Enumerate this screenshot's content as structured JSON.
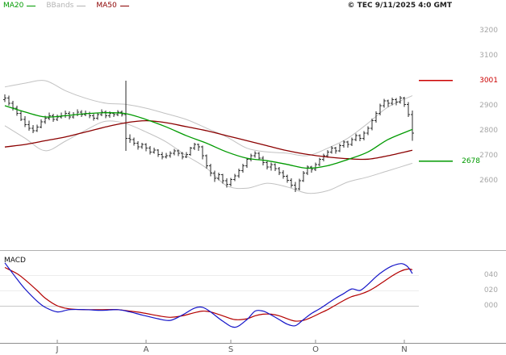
{
  "legend": {
    "items": [
      {
        "label": "MA20",
        "color": "#009a00"
      },
      {
        "label": "BBands",
        "color": "#b4b4b4"
      },
      {
        "label": "MA50",
        "color": "#8b0000"
      }
    ]
  },
  "meta": {
    "copyright": "© TEC 9/11/2025 4:0 GMT"
  },
  "chart_data": {
    "type": "candlestick",
    "panels": [
      "price",
      "macd"
    ],
    "price_panel": {
      "axis_ticks": [
        "3200",
        "3100",
        "2900",
        "2800",
        "2700",
        "2600"
      ],
      "axis_tick_values": [
        3200,
        3100,
        2900,
        2800,
        2700,
        2600
      ],
      "ylim": [
        2540,
        3260
      ],
      "levels": [
        {
          "label": "3001",
          "value": 3001,
          "color": "#cc0000"
        },
        {
          "label": "2678",
          "value": 2678,
          "color": "#009a00"
        }
      ],
      "candles_ohlc": [
        [
          2925,
          2945,
          2915,
          2930
        ],
        [
          2930,
          2940,
          2900,
          2910
        ],
        [
          2910,
          2920,
          2880,
          2890
        ],
        [
          2890,
          2900,
          2860,
          2870
        ],
        [
          2870,
          2880,
          2838,
          2845
        ],
        [
          2845,
          2858,
          2815,
          2825
        ],
        [
          2825,
          2840,
          2800,
          2810
        ],
        [
          2810,
          2822,
          2790,
          2800
        ],
        [
          2800,
          2825,
          2795,
          2815
        ],
        [
          2815,
          2845,
          2810,
          2835
        ],
        [
          2835,
          2860,
          2828,
          2850
        ],
        [
          2850,
          2872,
          2842,
          2860
        ],
        [
          2860,
          2868,
          2835,
          2845
        ],
        [
          2845,
          2865,
          2838,
          2855
        ],
        [
          2855,
          2872,
          2848,
          2860
        ],
        [
          2860,
          2880,
          2852,
          2870
        ],
        [
          2870,
          2878,
          2845,
          2855
        ],
        [
          2855,
          2875,
          2848,
          2865
        ],
        [
          2865,
          2885,
          2858,
          2875
        ],
        [
          2875,
          2882,
          2855,
          2865
        ],
        [
          2865,
          2880,
          2858,
          2870
        ],
        [
          2870,
          2876,
          2850,
          2860
        ],
        [
          2860,
          2868,
          2840,
          2850
        ],
        [
          2850,
          2872,
          2844,
          2865
        ],
        [
          2865,
          2885,
          2858,
          2875
        ],
        [
          2875,
          2880,
          2850,
          2860
        ],
        [
          2860,
          2878,
          2852,
          2870
        ],
        [
          2870,
          2874,
          2855,
          2865
        ],
        [
          2865,
          2882,
          2858,
          2875
        ],
        [
          2875,
          2880,
          2856,
          2865
        ],
        [
          2865,
          3000,
          2720,
          2770
        ],
        [
          2770,
          2785,
          2752,
          2765
        ],
        [
          2765,
          2772,
          2740,
          2750
        ],
        [
          2750,
          2758,
          2725,
          2735
        ],
        [
          2735,
          2752,
          2728,
          2745
        ],
        [
          2745,
          2750,
          2718,
          2730
        ],
        [
          2730,
          2738,
          2705,
          2715
        ],
        [
          2715,
          2732,
          2708,
          2722
        ],
        [
          2722,
          2726,
          2695,
          2705
        ],
        [
          2705,
          2715,
          2685,
          2695
        ],
        [
          2695,
          2712,
          2688,
          2700
        ],
        [
          2700,
          2718,
          2692,
          2710
        ],
        [
          2710,
          2728,
          2702,
          2720
        ],
        [
          2720,
          2725,
          2698,
          2710
        ],
        [
          2710,
          2715,
          2685,
          2695
        ],
        [
          2695,
          2715,
          2690,
          2705
        ],
        [
          2705,
          2735,
          2700,
          2730
        ],
        [
          2730,
          2752,
          2722,
          2745
        ],
        [
          2745,
          2748,
          2720,
          2735
        ],
        [
          2735,
          2740,
          2685,
          2700
        ],
        [
          2700,
          2705,
          2648,
          2660
        ],
        [
          2660,
          2668,
          2618,
          2630
        ],
        [
          2630,
          2640,
          2595,
          2610
        ],
        [
          2610,
          2632,
          2602,
          2625
        ],
        [
          2625,
          2628,
          2588,
          2600
        ],
        [
          2600,
          2610,
          2572,
          2585
        ],
        [
          2585,
          2612,
          2578,
          2605
        ],
        [
          2605,
          2628,
          2598,
          2620
        ],
        [
          2620,
          2648,
          2612,
          2640
        ],
        [
          2640,
          2668,
          2632,
          2660
        ],
        [
          2660,
          2692,
          2652,
          2685
        ],
        [
          2685,
          2708,
          2678,
          2700
        ],
        [
          2700,
          2718,
          2692,
          2710
        ],
        [
          2710,
          2715,
          2682,
          2690
        ],
        [
          2690,
          2698,
          2662,
          2672
        ],
        [
          2672,
          2680,
          2645,
          2655
        ],
        [
          2655,
          2672,
          2640,
          2665
        ],
        [
          2665,
          2670,
          2638,
          2648
        ],
        [
          2648,
          2655,
          2622,
          2632
        ],
        [
          2632,
          2642,
          2608,
          2618
        ],
        [
          2618,
          2625,
          2592,
          2602
        ],
        [
          2602,
          2610,
          2572,
          2582
        ],
        [
          2582,
          2595,
          2555,
          2568
        ],
        [
          2568,
          2608,
          2562,
          2600
        ],
        [
          2600,
          2638,
          2595,
          2630
        ],
        [
          2630,
          2662,
          2622,
          2655
        ],
        [
          2655,
          2660,
          2632,
          2645
        ],
        [
          2645,
          2672,
          2638,
          2665
        ],
        [
          2665,
          2692,
          2658,
          2685
        ],
        [
          2685,
          2708,
          2678,
          2700
        ],
        [
          2700,
          2722,
          2692,
          2715
        ],
        [
          2715,
          2738,
          2708,
          2730
        ],
        [
          2730,
          2735,
          2708,
          2720
        ],
        [
          2720,
          2748,
          2714,
          2740
        ],
        [
          2740,
          2762,
          2732,
          2755
        ],
        [
          2755,
          2760,
          2732,
          2745
        ],
        [
          2745,
          2772,
          2738,
          2765
        ],
        [
          2765,
          2788,
          2758,
          2780
        ],
        [
          2780,
          2785,
          2758,
          2770
        ],
        [
          2770,
          2798,
          2762,
          2790
        ],
        [
          2790,
          2818,
          2782,
          2810
        ],
        [
          2810,
          2848,
          2802,
          2840
        ],
        [
          2840,
          2878,
          2832,
          2870
        ],
        [
          2870,
          2908,
          2862,
          2900
        ],
        [
          2900,
          2928,
          2892,
          2920
        ],
        [
          2920,
          2925,
          2895,
          2910
        ],
        [
          2910,
          2932,
          2902,
          2925
        ],
        [
          2925,
          2930,
          2902,
          2915
        ],
        [
          2915,
          2938,
          2908,
          2930
        ],
        [
          2930,
          2935,
          2895,
          2905
        ],
        [
          2905,
          2915,
          2855,
          2865
        ],
        [
          2865,
          2880,
          2760,
          2790
        ]
      ],
      "ma20": [
        [
          0,
          2900
        ],
        [
          5,
          2875
        ],
        [
          10,
          2855
        ],
        [
          15,
          2860
        ],
        [
          20,
          2868
        ],
        [
          25,
          2872
        ],
        [
          30,
          2868
        ],
        [
          35,
          2845
        ],
        [
          40,
          2815
        ],
        [
          45,
          2780
        ],
        [
          50,
          2750
        ],
        [
          55,
          2715
        ],
        [
          60,
          2690
        ],
        [
          65,
          2680
        ],
        [
          70,
          2665
        ],
        [
          75,
          2650
        ],
        [
          80,
          2660
        ],
        [
          85,
          2685
        ],
        [
          90,
          2715
        ],
        [
          95,
          2765
        ],
        [
          101,
          2805
        ]
      ],
      "ma50": [
        [
          0,
          2735
        ],
        [
          5,
          2745
        ],
        [
          10,
          2760
        ],
        [
          15,
          2775
        ],
        [
          20,
          2795
        ],
        [
          25,
          2815
        ],
        [
          30,
          2832
        ],
        [
          35,
          2840
        ],
        [
          40,
          2832
        ],
        [
          45,
          2816
        ],
        [
          50,
          2800
        ],
        [
          55,
          2780
        ],
        [
          60,
          2760
        ],
        [
          65,
          2740
        ],
        [
          70,
          2720
        ],
        [
          75,
          2705
        ],
        [
          80,
          2695
        ],
        [
          85,
          2688
        ],
        [
          90,
          2686
        ],
        [
          95,
          2700
        ],
        [
          101,
          2722
        ]
      ],
      "bb_upper": [
        [
          0,
          2975
        ],
        [
          5,
          2990
        ],
        [
          10,
          3000
        ],
        [
          15,
          2960
        ],
        [
          20,
          2930
        ],
        [
          25,
          2910
        ],
        [
          30,
          2905
        ],
        [
          35,
          2890
        ],
        [
          40,
          2868
        ],
        [
          45,
          2845
        ],
        [
          50,
          2810
        ],
        [
          55,
          2775
        ],
        [
          60,
          2730
        ],
        [
          65,
          2715
        ],
        [
          70,
          2710
        ],
        [
          75,
          2700
        ],
        [
          80,
          2730
        ],
        [
          85,
          2770
        ],
        [
          90,
          2830
        ],
        [
          95,
          2895
        ],
        [
          101,
          2940
        ]
      ],
      "bb_lower": [
        [
          0,
          2820
        ],
        [
          5,
          2770
        ],
        [
          10,
          2720
        ],
        [
          15,
          2758
        ],
        [
          20,
          2802
        ],
        [
          25,
          2838
        ],
        [
          30,
          2828
        ],
        [
          35,
          2795
        ],
        [
          40,
          2755
        ],
        [
          45,
          2700
        ],
        [
          50,
          2650
        ],
        [
          55,
          2580
        ],
        [
          60,
          2570
        ],
        [
          65,
          2590
        ],
        [
          70,
          2575
        ],
        [
          75,
          2550
        ],
        [
          80,
          2560
        ],
        [
          85,
          2595
        ],
        [
          90,
          2615
        ],
        [
          95,
          2640
        ],
        [
          101,
          2670
        ]
      ]
    },
    "macd_panel": {
      "label": "MACD",
      "axis_ticks": [
        "040",
        "020",
        "000"
      ],
      "axis_tick_values": [
        0.4,
        0.2,
        0.0
      ],
      "ylim": [
        -0.45,
        0.62
      ],
      "macd_line": [
        [
          0,
          0.56
        ],
        [
          3,
          0.35
        ],
        [
          5,
          0.22
        ],
        [
          8,
          0.06
        ],
        [
          10,
          -0.02
        ],
        [
          13,
          -0.08
        ],
        [
          16,
          -0.05
        ],
        [
          20,
          -0.05
        ],
        [
          24,
          -0.06
        ],
        [
          28,
          -0.05
        ],
        [
          31,
          -0.08
        ],
        [
          34,
          -0.12
        ],
        [
          38,
          -0.17
        ],
        [
          41,
          -0.19
        ],
        [
          44,
          -0.12
        ],
        [
          47,
          -0.03
        ],
        [
          49,
          -0.02
        ],
        [
          51,
          -0.08
        ],
        [
          54,
          -0.2
        ],
        [
          57,
          -0.28
        ],
        [
          60,
          -0.18
        ],
        [
          62,
          -0.07
        ],
        [
          64,
          -0.07
        ],
        [
          66,
          -0.12
        ],
        [
          68,
          -0.18
        ],
        [
          70,
          -0.24
        ],
        [
          72,
          -0.26
        ],
        [
          74,
          -0.18
        ],
        [
          76,
          -0.1
        ],
        [
          78,
          -0.04
        ],
        [
          80,
          0.03
        ],
        [
          82,
          0.1
        ],
        [
          84,
          0.16
        ],
        [
          86,
          0.22
        ],
        [
          88,
          0.2
        ],
        [
          90,
          0.28
        ],
        [
          92,
          0.38
        ],
        [
          94,
          0.46
        ],
        [
          96,
          0.52
        ],
        [
          98,
          0.55
        ],
        [
          99,
          0.54
        ],
        [
          100,
          0.5
        ],
        [
          101,
          0.42
        ]
      ],
      "signal_line": [
        [
          0,
          0.5
        ],
        [
          3,
          0.42
        ],
        [
          5,
          0.34
        ],
        [
          8,
          0.2
        ],
        [
          10,
          0.1
        ],
        [
          13,
          0.0
        ],
        [
          16,
          -0.04
        ],
        [
          20,
          -0.05
        ],
        [
          24,
          -0.05
        ],
        [
          28,
          -0.05
        ],
        [
          31,
          -0.07
        ],
        [
          34,
          -0.09
        ],
        [
          38,
          -0.13
        ],
        [
          41,
          -0.15
        ],
        [
          44,
          -0.13
        ],
        [
          47,
          -0.09
        ],
        [
          49,
          -0.07
        ],
        [
          51,
          -0.08
        ],
        [
          54,
          -0.13
        ],
        [
          57,
          -0.18
        ],
        [
          60,
          -0.17
        ],
        [
          62,
          -0.13
        ],
        [
          64,
          -0.11
        ],
        [
          66,
          -0.11
        ],
        [
          68,
          -0.13
        ],
        [
          70,
          -0.17
        ],
        [
          72,
          -0.2
        ],
        [
          74,
          -0.19
        ],
        [
          76,
          -0.15
        ],
        [
          78,
          -0.1
        ],
        [
          80,
          -0.05
        ],
        [
          82,
          0.01
        ],
        [
          84,
          0.07
        ],
        [
          86,
          0.12
        ],
        [
          88,
          0.15
        ],
        [
          90,
          0.19
        ],
        [
          92,
          0.25
        ],
        [
          94,
          0.32
        ],
        [
          96,
          0.39
        ],
        [
          98,
          0.45
        ],
        [
          100,
          0.48
        ],
        [
          101,
          0.47
        ]
      ]
    },
    "x_axis": {
      "labels": [
        "J",
        "A",
        "S",
        "O",
        "N"
      ],
      "label_bar_index": [
        13,
        35,
        56,
        77,
        99
      ]
    },
    "colors": {
      "candle": "#2a2a2a",
      "ma20": "#009a00",
      "ma50": "#8b0000",
      "bbands": "#c2c2c2",
      "level_red": "#cc0000",
      "level_green": "#009a00",
      "macd_line": "#1414c8",
      "macd_signal": "#b40000",
      "axis_text": "#a6a6a6"
    }
  }
}
